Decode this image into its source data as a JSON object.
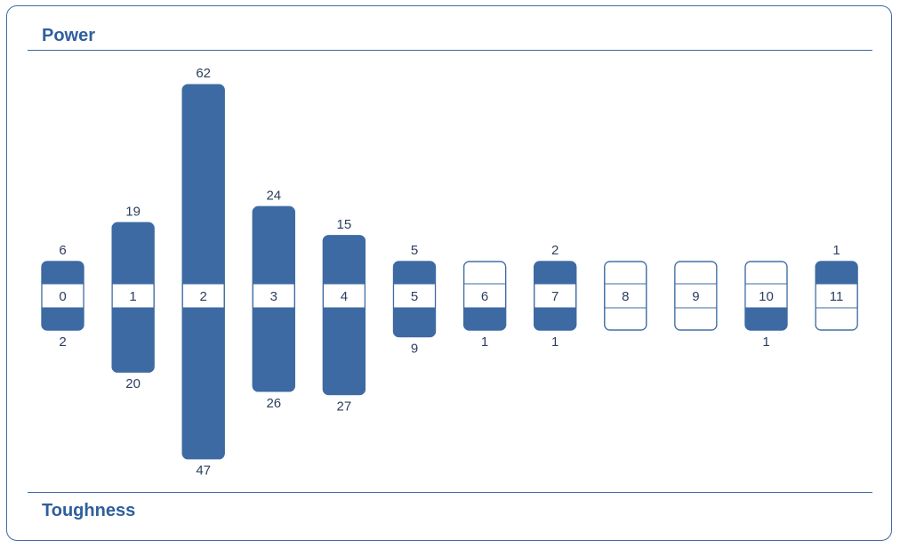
{
  "header": {
    "title": "Power"
  },
  "footer": {
    "title": "Toughness"
  },
  "colors": {
    "accent": "#3d6aa2",
    "text": "#2b3f5e",
    "heading": "#2e5f9d"
  },
  "chart_data": {
    "type": "bar",
    "categories": [
      "0",
      "1",
      "2",
      "3",
      "4",
      "5",
      "6",
      "7",
      "8",
      "9",
      "10",
      "11"
    ],
    "series": [
      {
        "name": "Power",
        "values": [
          6,
          19,
          62,
          24,
          15,
          5,
          0,
          2,
          0,
          0,
          0,
          1
        ]
      },
      {
        "name": "Toughness",
        "values": [
          2,
          20,
          47,
          26,
          27,
          9,
          1,
          1,
          0,
          0,
          1,
          0
        ]
      }
    ],
    "value_labels": {
      "Power": [
        "6",
        "19",
        "62",
        "24",
        "15",
        "5",
        "",
        "2",
        "",
        "",
        "",
        "1"
      ],
      "Toughness": [
        "2",
        "20",
        "47",
        "26",
        "27",
        "9",
        "1",
        "1",
        "",
        "",
        "1",
        ""
      ]
    },
    "grid": false
  }
}
